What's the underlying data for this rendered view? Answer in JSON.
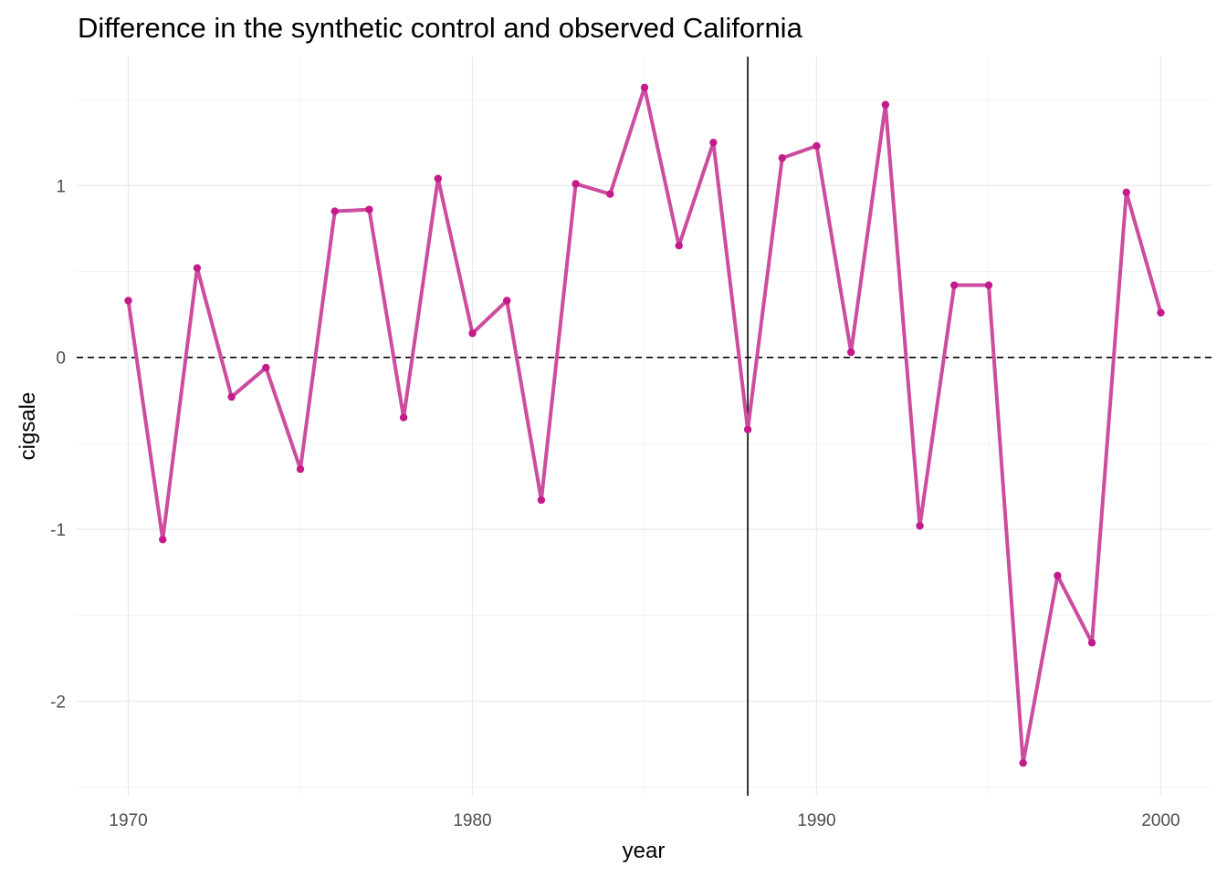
{
  "chart_data": {
    "type": "line",
    "title": "Difference in the synthetic control and observed California",
    "xlabel": "year",
    "ylabel": "cigsale",
    "xlim": [
      1968.5,
      2001.5
    ],
    "ylim": [
      -2.55,
      1.75
    ],
    "x_ticks": [
      1970,
      1980,
      1990,
      2000
    ],
    "y_ticks": [
      -2,
      -1,
      0,
      1
    ],
    "x_tick_labels": [
      "1970",
      "1980",
      "1990",
      "2000"
    ],
    "y_tick_labels": [
      "-2",
      "-1",
      "0",
      "1"
    ],
    "grid": true,
    "reference_lines": {
      "horizontal_dashed_y": 0,
      "vertical_solid_x": 1988
    },
    "line_color": "#cc4c9f",
    "point_color": "#c41a8a",
    "series": [
      {
        "x": [
          1970,
          1971,
          1972,
          1973,
          1974,
          1975,
          1976,
          1977,
          1978,
          1979,
          1980,
          1981,
          1982,
          1983,
          1984,
          1985,
          1986,
          1987,
          1988,
          1989,
          1990,
          1991,
          1992,
          1993,
          1994,
          1995,
          1996,
          1997,
          1998,
          1999,
          2000
        ],
        "values": [
          0.33,
          -1.06,
          0.52,
          -0.23,
          -0.06,
          -0.65,
          0.85,
          0.86,
          -0.35,
          1.04,
          0.14,
          0.33,
          -0.83,
          1.01,
          0.95,
          1.57,
          0.65,
          1.25,
          -0.42,
          1.16,
          1.23,
          0.03,
          1.47,
          -0.98,
          0.42,
          0.42,
          -2.36,
          -1.27,
          -1.66,
          0.96,
          0.26
        ]
      }
    ]
  }
}
